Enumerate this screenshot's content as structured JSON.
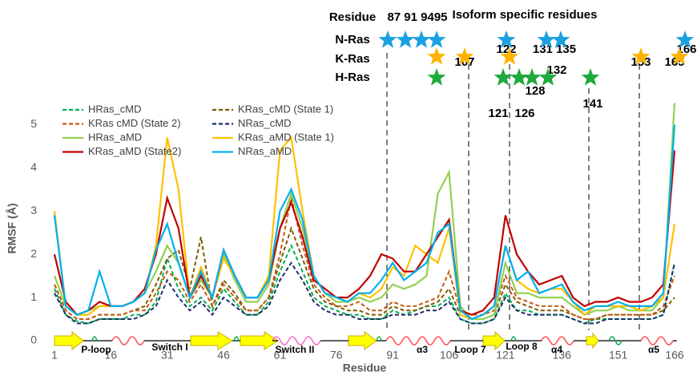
{
  "chart_data": {
    "type": "line",
    "x_label": "Residue",
    "y_label": "RMSF (Å)",
    "x": [
      1,
      4,
      7,
      10,
      13,
      16,
      19,
      22,
      25,
      28,
      31,
      34,
      37,
      40,
      43,
      46,
      49,
      52,
      55,
      58,
      61,
      64,
      67,
      70,
      73,
      76,
      79,
      82,
      85,
      88,
      91,
      94,
      97,
      100,
      103,
      106,
      109,
      112,
      115,
      118,
      121,
      124,
      127,
      130,
      133,
      136,
      139,
      142,
      145,
      148,
      151,
      154,
      157,
      160,
      163,
      166
    ],
    "xlim": [
      1,
      166
    ],
    "xticks": [
      1,
      16,
      31,
      46,
      61,
      76,
      91,
      106,
      121,
      136,
      151,
      166
    ],
    "ylim": [
      0,
      5.6
    ],
    "yticks": [
      0,
      1,
      2,
      3,
      4,
      5
    ],
    "grid": false,
    "legend": "upper left",
    "series": [
      {
        "name": "HRas_cMD",
        "color": "#00b050",
        "dash": true,
        "values": [
          1.2,
          0.6,
          0.45,
          0.4,
          0.5,
          0.5,
          0.5,
          0.6,
          0.6,
          0.9,
          1.9,
          1.2,
          0.8,
          1.0,
          0.7,
          1.2,
          0.9,
          0.6,
          0.6,
          0.9,
          1.6,
          2.2,
          1.6,
          1.0,
          0.8,
          0.7,
          0.6,
          0.6,
          0.5,
          0.5,
          0.7,
          0.6,
          0.7,
          0.8,
          0.8,
          1.0,
          0.5,
          0.4,
          0.4,
          0.5,
          1.1,
          0.7,
          0.7,
          0.6,
          0.6,
          0.6,
          0.5,
          0.4,
          0.5,
          0.5,
          0.5,
          0.5,
          0.5,
          0.5,
          0.6,
          1.8
        ]
      },
      {
        "name": "KRas_cMD (State 1)",
        "color": "#7f5a00",
        "dash": true,
        "values": [
          1.3,
          0.7,
          0.5,
          0.5,
          0.6,
          0.6,
          0.6,
          0.7,
          0.8,
          1.3,
          1.9,
          2.1,
          1.2,
          2.4,
          0.8,
          1.4,
          1.1,
          0.7,
          0.7,
          1.0,
          1.8,
          2.6,
          1.9,
          1.2,
          0.9,
          0.8,
          0.7,
          0.7,
          0.6,
          0.6,
          0.8,
          0.7,
          0.7,
          0.8,
          0.9,
          1.2,
          0.6,
          0.5,
          0.5,
          0.6,
          1.3,
          0.9,
          0.8,
          0.7,
          0.7,
          0.7,
          0.6,
          0.5,
          0.5,
          0.6,
          0.6,
          0.6,
          0.6,
          0.6,
          0.7,
          1.0
        ]
      },
      {
        "name": "KRas cMD (State 2)",
        "color": "#c55a11",
        "dash": true,
        "values": [
          1.3,
          0.7,
          0.5,
          0.5,
          0.6,
          0.6,
          0.6,
          0.7,
          0.7,
          1.1,
          1.6,
          1.4,
          0.9,
          1.3,
          0.8,
          1.3,
          1.0,
          0.7,
          0.7,
          1.0,
          2.0,
          3.3,
          2.2,
          1.3,
          1.0,
          0.8,
          0.8,
          0.9,
          0.7,
          0.7,
          0.9,
          0.8,
          0.8,
          0.9,
          1.0,
          1.6,
          0.7,
          0.6,
          0.6,
          0.7,
          1.5,
          1.0,
          0.9,
          0.8,
          0.8,
          0.8,
          0.6,
          0.5,
          0.5,
          0.6,
          0.6,
          0.6,
          0.6,
          0.6,
          0.8,
          1.5
        ]
      },
      {
        "name": "NRas_cMD",
        "color": "#1f2d6b",
        "dash": true,
        "values": [
          1.1,
          0.6,
          0.4,
          0.4,
          0.5,
          0.5,
          0.5,
          0.5,
          0.6,
          0.8,
          1.4,
          1.0,
          0.7,
          0.9,
          0.6,
          1.0,
          0.8,
          0.6,
          0.6,
          0.8,
          1.4,
          1.8,
          1.4,
          0.9,
          0.7,
          0.6,
          0.6,
          0.5,
          0.5,
          0.5,
          0.6,
          0.6,
          0.6,
          0.7,
          0.7,
          0.9,
          0.5,
          0.4,
          0.4,
          0.5,
          1.0,
          0.7,
          0.6,
          0.6,
          0.6,
          0.6,
          0.5,
          0.4,
          0.4,
          0.5,
          0.5,
          0.5,
          0.5,
          0.5,
          0.6,
          1.8
        ]
      },
      {
        "name": "HRas_aMD",
        "color": "#92d050",
        "dash": false,
        "values": [
          1.5,
          0.8,
          0.6,
          0.7,
          0.8,
          0.8,
          0.8,
          0.9,
          1.1,
          1.6,
          2.2,
          1.8,
          1.0,
          1.4,
          1.0,
          2.0,
          1.4,
          0.9,
          0.9,
          1.3,
          2.6,
          3.4,
          2.6,
          1.5,
          1.1,
          0.9,
          0.9,
          1.0,
          0.9,
          1.0,
          1.3,
          1.2,
          1.3,
          1.5,
          3.4,
          3.9,
          0.8,
          0.5,
          0.5,
          0.6,
          1.8,
          1.1,
          1.1,
          1.0,
          1.0,
          1.0,
          0.8,
          0.6,
          0.7,
          0.7,
          0.8,
          0.7,
          0.7,
          0.7,
          1.0,
          5.5
        ]
      },
      {
        "name": "KRas_aMD (State 1)",
        "color": "#ffc000",
        "dash": false,
        "values": [
          3.0,
          0.8,
          0.6,
          0.6,
          0.8,
          0.8,
          0.8,
          0.9,
          1.1,
          2.2,
          4.7,
          3.5,
          1.0,
          1.7,
          1.0,
          1.9,
          1.5,
          1.0,
          1.0,
          1.5,
          4.4,
          4.7,
          3.0,
          1.5,
          1.1,
          1.0,
          0.9,
          1.1,
          1.0,
          1.2,
          1.7,
          1.5,
          2.2,
          2.0,
          1.8,
          2.6,
          0.6,
          0.5,
          0.6,
          0.8,
          2.2,
          1.4,
          1.2,
          1.1,
          1.2,
          1.2,
          0.9,
          0.6,
          0.8,
          0.8,
          0.8,
          0.8,
          0.7,
          0.8,
          1.0,
          2.7
        ]
      },
      {
        "name": "KRas_aMD (State2)",
        "color": "#c00000",
        "dash": false,
        "values": [
          2.0,
          0.9,
          0.6,
          0.7,
          0.9,
          0.8,
          0.8,
          0.9,
          1.2,
          2.0,
          3.3,
          2.6,
          1.0,
          1.5,
          1.0,
          2.1,
          1.5,
          1.0,
          1.0,
          1.4,
          2.6,
          3.2,
          2.4,
          1.4,
          1.2,
          1.0,
          1.0,
          1.2,
          1.5,
          2.0,
          1.9,
          1.6,
          1.6,
          2.0,
          2.4,
          2.8,
          0.7,
          0.6,
          0.7,
          1.0,
          2.9,
          2.0,
          1.6,
          1.3,
          1.4,
          1.5,
          1.0,
          0.8,
          0.9,
          0.9,
          1.0,
          0.9,
          0.9,
          1.0,
          1.3,
          4.4
        ]
      },
      {
        "name": "NRas_aMD",
        "color": "#00b0f0",
        "dash": false,
        "values": [
          2.9,
          0.8,
          0.6,
          0.7,
          1.6,
          0.8,
          0.8,
          0.9,
          1.1,
          2.1,
          2.7,
          1.8,
          1.0,
          1.6,
          1.0,
          2.1,
          1.5,
          1.0,
          1.0,
          1.4,
          3.0,
          3.5,
          2.8,
          1.5,
          1.1,
          1.0,
          0.9,
          1.1,
          1.1,
          1.4,
          1.8,
          1.4,
          1.6,
          1.8,
          2.5,
          2.7,
          0.7,
          0.5,
          0.6,
          0.8,
          2.2,
          1.4,
          1.6,
          1.1,
          1.2,
          1.3,
          0.9,
          0.7,
          0.8,
          0.8,
          0.9,
          0.8,
          0.8,
          0.8,
          1.1,
          5.0
        ]
      }
    ],
    "annotations": [
      "Isoform specific residues",
      "Residue",
      "87 91 9495",
      "N-Ras",
      "K-Ras",
      "H-Ras",
      "107",
      "122",
      "131 135",
      "132",
      "128",
      "121",
      "126",
      "141",
      "153",
      "165",
      "166"
    ],
    "structure_labels": [
      "P-loop",
      "Switch I",
      "Switch II",
      "α3",
      "Loop 7",
      "Loop 8",
      "α4",
      "α5"
    ]
  }
}
